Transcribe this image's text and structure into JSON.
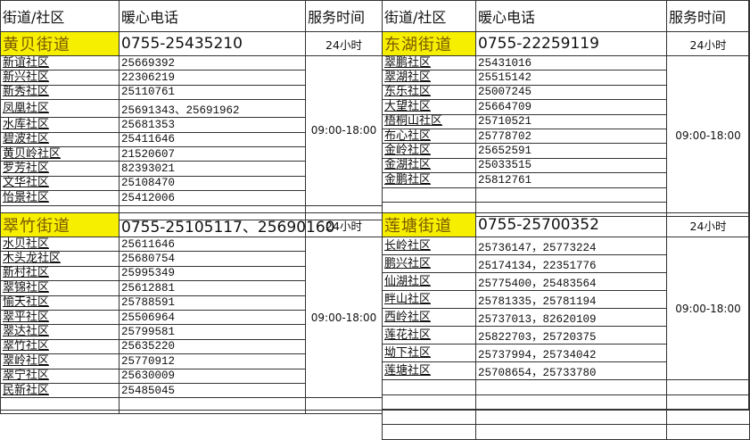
{
  "headers": {
    "name": "街道/社区",
    "phone": "暖心电话",
    "time": "服务时间"
  },
  "sections": [
    {
      "street": "黄贝街道",
      "street_phone": "0755-25435210",
      "street_hours": "24小时",
      "hours": "09:00-18:00",
      "communities": [
        {
          "name": "新谊社区",
          "phone": "25669392"
        },
        {
          "name": "新兴社区",
          "phone": "22306219"
        },
        {
          "name": "新秀社区",
          "phone": "25110761"
        },
        {
          "name": "凤凰社区",
          "phone": "25691343、25691962"
        },
        {
          "name": "水库社区",
          "phone": "25681353"
        },
        {
          "name": "碧波社区",
          "phone": "25411646"
        },
        {
          "name": "黄贝岭社区",
          "phone": "21520607"
        },
        {
          "name": "罗芳社区",
          "phone": "82393021"
        },
        {
          "name": "文华社区",
          "phone": "25108470"
        },
        {
          "name": "怡景社区",
          "phone": "25412006"
        }
      ]
    },
    {
      "street": "东湖街道",
      "street_phone": "0755-22259119",
      "street_hours": "24小时",
      "hours": "09:00-18:00",
      "communities": [
        {
          "name": "翠鹏社区",
          "phone": "25431016"
        },
        {
          "name": "翠湖社区",
          "phone": "25515142"
        },
        {
          "name": "东乐社区",
          "phone": "25007245"
        },
        {
          "name": "大望社区",
          "phone": "25664709"
        },
        {
          "name": "梧桐山社区",
          "phone": "25710521"
        },
        {
          "name": "布心社区",
          "phone": "25778702"
        },
        {
          "name": "金岭社区",
          "phone": "25652591"
        },
        {
          "name": "金湖社区",
          "phone": "25033515"
        },
        {
          "name": "金鹏社区",
          "phone": "25812761"
        }
      ]
    },
    {
      "street": "翠竹街道",
      "street_phone": "0755-25105117、25690160",
      "street_hours": "24小时",
      "hours": "09:00-18:00",
      "communities": [
        {
          "name": "水贝社区",
          "phone": "25611646"
        },
        {
          "name": "木头龙社区",
          "phone": "25680754"
        },
        {
          "name": "新村社区",
          "phone": "25995349"
        },
        {
          "name": "翠锦社区",
          "phone": "25612881"
        },
        {
          "name": "愉天社区",
          "phone": "25788591"
        },
        {
          "name": "翠平社区",
          "phone": "25506964"
        },
        {
          "name": "翠达社区",
          "phone": "25799581"
        },
        {
          "name": "翠竹社区",
          "phone": "25635220"
        },
        {
          "name": "翠岭社区",
          "phone": "25770912"
        },
        {
          "name": "翠宁社区",
          "phone": "25630009"
        },
        {
          "name": "民新社区",
          "phone": "25485045"
        }
      ]
    },
    {
      "street": "莲塘街道",
      "street_phone": "0755-25700352",
      "street_hours": "24小时",
      "hours": "09:00-18:00",
      "communities": [
        {
          "name": "长岭社区",
          "phone": "25736147，25773224"
        },
        {
          "name": "鹏兴社区",
          "phone": "25174134，22351776"
        },
        {
          "name": "仙湖社区",
          "phone": "25775400，25483564"
        },
        {
          "name": "畔山社区",
          "phone": "25781335，25781194"
        },
        {
          "name": "西岭社区",
          "phone": "25737013，82620109"
        },
        {
          "name": "莲花社区",
          "phone": "25822703，25720375"
        },
        {
          "name": "坳下社区",
          "phone": "25737994，25734042"
        },
        {
          "name": "莲塘社区",
          "phone": "25708654，25733780"
        }
      ]
    }
  ],
  "colors": {
    "street_highlight": "#f7ef00",
    "street_text": "#7a5a00"
  }
}
